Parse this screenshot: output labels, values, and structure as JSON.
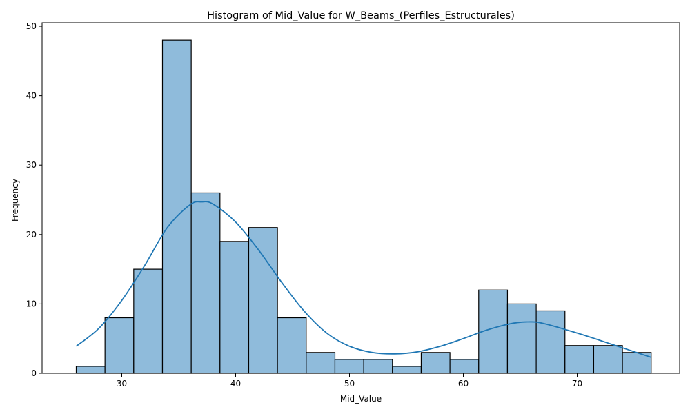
{
  "chart_data": {
    "type": "bar",
    "title": "Histogram of Mid_Value for W_Beams_(Perfiles_Estructurales)",
    "xlabel": "Mid_Value",
    "ylabel": "Frequency",
    "xlim": [
      23,
      79
    ],
    "ylim": [
      0,
      50.5
    ],
    "xticks": [
      30,
      40,
      50,
      60,
      70
    ],
    "yticks": [
      0,
      10,
      20,
      30,
      40,
      50
    ],
    "bin_start": 26.0,
    "bin_width": 2.525,
    "values": [
      1,
      8,
      15,
      48,
      26,
      19,
      21,
      8,
      3,
      2,
      2,
      1,
      3,
      2,
      12,
      10,
      9,
      4,
      4,
      3
    ],
    "kde": {
      "x": [
        26,
        28,
        30,
        32,
        34,
        36,
        37,
        38,
        40,
        42,
        44,
        46,
        48,
        50,
        52,
        54,
        56,
        58,
        60,
        62,
        64,
        65.5,
        67,
        70,
        73,
        76.5
      ],
      "y": [
        3.9,
        6.5,
        10.5,
        15.5,
        21,
        24.3,
        24.7,
        24.4,
        21.8,
        17.8,
        13.2,
        9.0,
        5.8,
        3.9,
        3.0,
        2.8,
        3.1,
        3.9,
        5.0,
        6.2,
        7.1,
        7.4,
        7.2,
        5.8,
        4.2,
        2.3
      ]
    },
    "colors": {
      "bar_fill": "#8fbbdb",
      "bar_edge": "#000000",
      "kde_line": "#1f77b4"
    },
    "grid": false,
    "legend": "none"
  }
}
